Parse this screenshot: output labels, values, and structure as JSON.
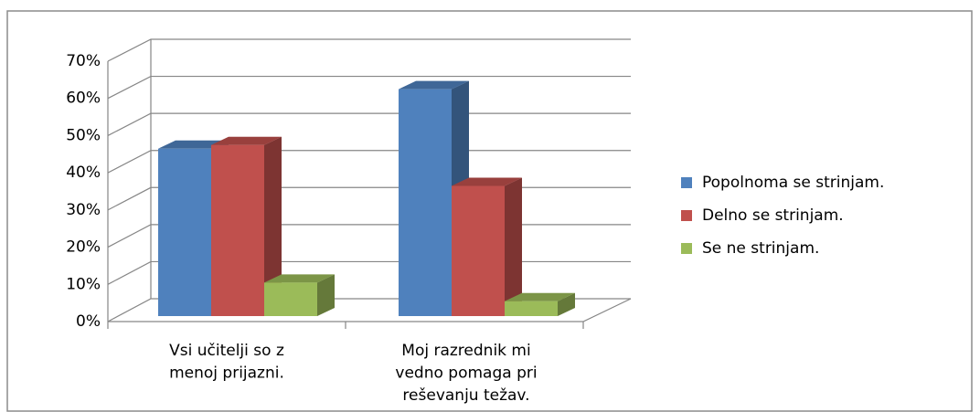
{
  "chart_data": {
    "type": "bar3d",
    "categories": [
      "Vsi učitelji so z menoj prijazni.",
      "Moj razrednik mi vedno pomaga pri reševanju težav."
    ],
    "series": [
      {
        "name": "Popolnoma se strinjam.",
        "color": "#4f81bd",
        "values": [
          45,
          61
        ]
      },
      {
        "name": "Delno se strinjam.",
        "color": "#c0504d",
        "values": [
          46,
          35
        ]
      },
      {
        "name": "Se ne strinjam.",
        "color": "#9bbb59",
        "values": [
          9,
          4
        ]
      }
    ],
    "ylim": [
      0,
      70
    ],
    "yticks": [
      {
        "value": 0,
        "label": "0%"
      },
      {
        "value": 10,
        "label": "10%"
      },
      {
        "value": 20,
        "label": "20%"
      },
      {
        "value": 30,
        "label": "30%"
      },
      {
        "value": 40,
        "label": "40%"
      },
      {
        "value": 50,
        "label": "50%"
      },
      {
        "value": 60,
        "label": "60%"
      },
      {
        "value": 70,
        "label": "70%"
      }
    ],
    "grid": true,
    "legend": "right"
  }
}
